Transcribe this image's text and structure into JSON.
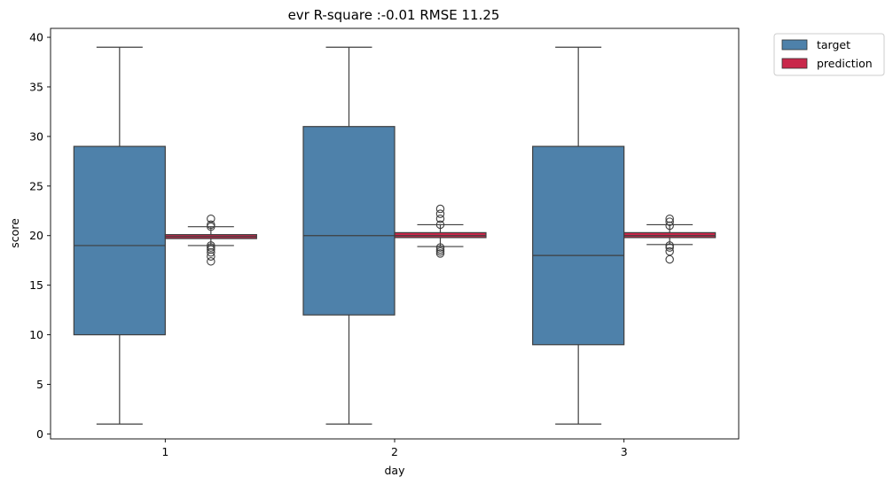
{
  "chart_data": {
    "type": "box",
    "title": "evr R-square :-0.01 RMSE 11.25",
    "xlabel": "day",
    "ylabel": "score",
    "categories": [
      "1",
      "2",
      "3"
    ],
    "ylim": [
      -0.5,
      40.9
    ],
    "yticks": [
      0,
      5,
      10,
      15,
      20,
      25,
      30,
      35,
      40
    ],
    "legend_position": "outside upper right",
    "grid": false,
    "series": [
      {
        "name": "target",
        "color": "#4e81aa",
        "boxes": [
          {
            "category": "1",
            "whislo": 1,
            "q1": 10,
            "med": 19,
            "q3": 29,
            "whishi": 39,
            "fliers": []
          },
          {
            "category": "2",
            "whislo": 1,
            "q1": 12,
            "med": 20,
            "q3": 31,
            "whishi": 39,
            "fliers": []
          },
          {
            "category": "3",
            "whislo": 1,
            "q1": 9,
            "med": 18,
            "q3": 29,
            "whishi": 39,
            "fliers": []
          }
        ]
      },
      {
        "name": "prediction",
        "color": "#c9284b",
        "boxes": [
          {
            "category": "1",
            "whislo": 19.0,
            "q1": 19.7,
            "med": 19.9,
            "q3": 20.1,
            "whishi": 20.9,
            "fliers": [
              21.7,
              21.1,
              20.9,
              19.0,
              18.8,
              18.6,
              18.3,
              17.9,
              17.4
            ]
          },
          {
            "category": "2",
            "whislo": 18.9,
            "q1": 19.8,
            "med": 20.0,
            "q3": 20.3,
            "whishi": 21.1,
            "fliers": [
              22.7,
              22.2,
              21.7,
              21.1,
              18.8,
              18.6,
              18.4,
              18.2
            ]
          },
          {
            "category": "3",
            "whislo": 19.1,
            "q1": 19.8,
            "med": 20.0,
            "q3": 20.3,
            "whishi": 21.1,
            "fliers": [
              21.7,
              21.4,
              21.0,
              19.0,
              18.8,
              18.4,
              17.6
            ]
          }
        ]
      }
    ]
  }
}
